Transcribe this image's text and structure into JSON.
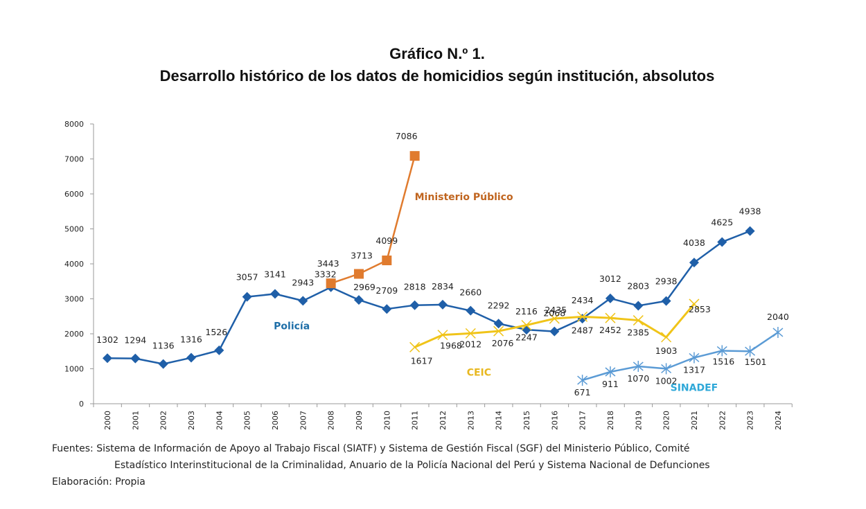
{
  "chart_data": {
    "type": "line",
    "title": "Gráfico N.º 1.",
    "subtitle": "Desarrollo histórico de los datos de homicidios según institución, absolutos",
    "xlabel": "",
    "ylabel": "",
    "ylim": [
      0,
      8000
    ],
    "yticks": [
      "0",
      "1000",
      "2000",
      "3000",
      "4000",
      "5000",
      "6000",
      "7000",
      "8000"
    ],
    "x": [
      "2000",
      "2001",
      "2002",
      "2003",
      "2004",
      "2005",
      "2006",
      "2007",
      "2008",
      "2009",
      "2010",
      "2011",
      "2012",
      "2013",
      "2014",
      "2015",
      "2016",
      "2017",
      "2018",
      "2019",
      "2020",
      "2021",
      "2022",
      "2023",
      "2024"
    ],
    "grid": false,
    "legend": "inline labels",
    "series": [
      {
        "name": "Policía",
        "color": "#1f5fa8",
        "marker": "diamond",
        "points": [
          {
            "x": "2000",
            "y": 1302
          },
          {
            "x": "2001",
            "y": 1294
          },
          {
            "x": "2002",
            "y": 1136
          },
          {
            "x": "2003",
            "y": 1316
          },
          {
            "x": "2004",
            "y": 1526
          },
          {
            "x": "2005",
            "y": 3057
          },
          {
            "x": "2006",
            "y": 3141
          },
          {
            "x": "2007",
            "y": 2943
          },
          {
            "x": "2008",
            "y": 3332
          },
          {
            "x": "2009",
            "y": 2969
          },
          {
            "x": "2010",
            "y": 2709
          },
          {
            "x": "2011",
            "y": 2818
          },
          {
            "x": "2012",
            "y": 2834
          },
          {
            "x": "2013",
            "y": 2660
          },
          {
            "x": "2014",
            "y": 2292
          },
          {
            "x": "2015",
            "y": 2116
          },
          {
            "x": "2016",
            "y": 2068
          },
          {
            "x": "2017",
            "y": 2434
          },
          {
            "x": "2018",
            "y": 3012
          },
          {
            "x": "2019",
            "y": 2803
          },
          {
            "x": "2020",
            "y": 2938
          },
          {
            "x": "2021",
            "y": 4038
          },
          {
            "x": "2022",
            "y": 4625
          },
          {
            "x": "2023",
            "y": 4938
          }
        ]
      },
      {
        "name": "Ministerio Público",
        "color": "#e07b2e",
        "marker": "square",
        "points": [
          {
            "x": "2008",
            "y": 3443
          },
          {
            "x": "2009",
            "y": 3713
          },
          {
            "x": "2010",
            "y": 4099
          },
          {
            "x": "2011",
            "y": 7086
          }
        ]
      },
      {
        "name": "CEIC",
        "color": "#f0c419",
        "marker": "x",
        "points": [
          {
            "x": "2011",
            "y": 1617
          },
          {
            "x": "2012",
            "y": 1968
          },
          {
            "x": "2013",
            "y": 2012
          },
          {
            "x": "2014",
            "y": 2076
          },
          {
            "x": "2015",
            "y": 2247
          },
          {
            "x": "2016",
            "y": 2435
          },
          {
            "x": "2017",
            "y": 2487
          },
          {
            "x": "2018",
            "y": 2452
          },
          {
            "x": "2019",
            "y": 2385
          },
          {
            "x": "2020",
            "y": 1903
          },
          {
            "x": "2021",
            "y": 2853
          }
        ]
      },
      {
        "name": "SINADEF",
        "color": "#5b9bd5",
        "marker": "asterisk",
        "points": [
          {
            "x": "2017",
            "y": 671
          },
          {
            "x": "2018",
            "y": 911
          },
          {
            "x": "2019",
            "y": 1070
          },
          {
            "x": "2020",
            "y": 1002
          },
          {
            "x": "2021",
            "y": 1317
          },
          {
            "x": "2022",
            "y": 1516
          },
          {
            "x": "2023",
            "y": 1501
          },
          {
            "x": "2024",
            "y": 2040
          }
        ]
      }
    ],
    "series_label_colors": {
      "Policía": "#1f6fa8",
      "Ministerio Público": "#c0651f",
      "CEIC": "#e8b820",
      "SINADEF": "#2fa8d8"
    }
  },
  "footer": {
    "sources_line1": "Fuentes: Sistema de Información de Apoyo al Trabajo Fiscal (SIATF) y Sistema de Gestión Fiscal (SGF) del Ministerio Público, Comité",
    "sources_line2": "Estadístico Interinstitucional de la Criminalidad, Anuario de la Policía Nacional del Perú y Sistema Nacional de Defunciones",
    "elaboration": "Elaboración: Propia"
  }
}
